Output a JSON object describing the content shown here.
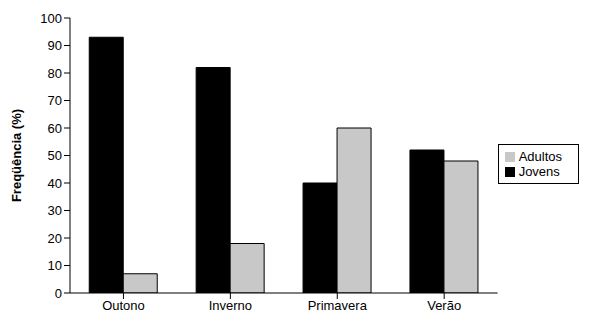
{
  "chart_data": {
    "type": "bar",
    "y_label": "Freqüência (%)",
    "categories": [
      "Outono",
      "Inverno",
      "Primavera",
      "Verão"
    ],
    "series": [
      {
        "name": "Jovens",
        "color": "#000000",
        "values": [
          93,
          82,
          40,
          52
        ]
      },
      {
        "name": "Adultos",
        "color": "#c8c8c8",
        "values": [
          7,
          18,
          60,
          48
        ]
      }
    ],
    "ylim": [
      0,
      100
    ],
    "yticks": [
      0,
      10,
      20,
      30,
      40,
      50,
      60,
      70,
      80,
      90,
      100
    ],
    "grid": false,
    "legend": "right"
  }
}
